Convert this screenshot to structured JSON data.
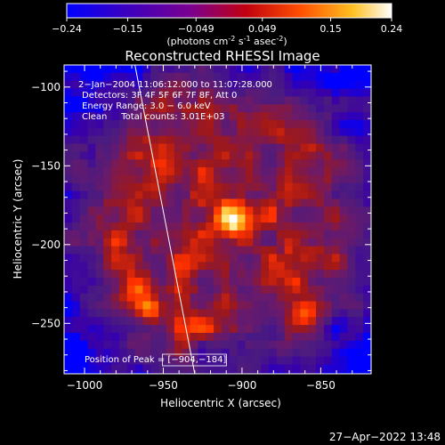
{
  "colorbar": {
    "ticks": [
      "-0.24",
      "-0.15",
      "-0.049",
      "0.049",
      "0.15",
      "0.24"
    ],
    "tick_values": [
      -0.24,
      -0.15,
      -0.049,
      0.049,
      0.15,
      0.24
    ],
    "range": [
      -0.24,
      0.24
    ],
    "units_main": "(photons cm",
    "units_exp1": "-2",
    "units_mid1": " s",
    "units_exp2": "-1",
    "units_mid2": " asec",
    "units_exp3": "-2",
    "units_end": ")"
  },
  "chart_data": {
    "type": "heatmap",
    "title": "Reconstructed RHESSI Image",
    "xlabel": "Heliocentric X (arcsec)",
    "ylabel": "Heliocentric Y (arcsec)",
    "xlim": [
      -1013,
      -818
    ],
    "ylim": [
      -282,
      -86
    ],
    "x_ticks": [
      -1000,
      -950,
      -900,
      -850
    ],
    "y_ticks": [
      -100,
      -150,
      -200,
      -250
    ],
    "x_tick_labels": [
      "−1000",
      "−950",
      "−900",
      "−850"
    ],
    "y_tick_labels": [
      "−100",
      "−150",
      "−200",
      "−250"
    ],
    "colormap_range": [
      -0.24,
      0.24
    ],
    "colormap": [
      "#0000ff",
      "#3a00a8",
      "#4a1b80",
      "#6a1a6a",
      "#a01818",
      "#ff3000",
      "#ff8a00",
      "#ffe060",
      "#ffffff"
    ],
    "sources": [
      {
        "x": -904,
        "y": -184,
        "peak": 0.24
      },
      {
        "x": -960,
        "y": -240,
        "peak": 0.17
      },
      {
        "x": -862,
        "y": -243,
        "peak": 0.12
      }
    ],
    "annotations": [
      "2−Jan−2004 11:06:12.000 to 11:07:28.000",
      "Detectors: 3F 4F 5F 6F 7F 8F, Att 0",
      "Energy Range: 3.0 − 6.0 keV",
      "Clean     Total counts: 3.01E+03"
    ],
    "peak_label": "Position of Peak = [−904,−184]",
    "limb_line": [
      [
        -968,
        -86
      ],
      [
        -930,
        -282
      ]
    ]
  },
  "timestamp": "27−Apr−2022 13:48"
}
